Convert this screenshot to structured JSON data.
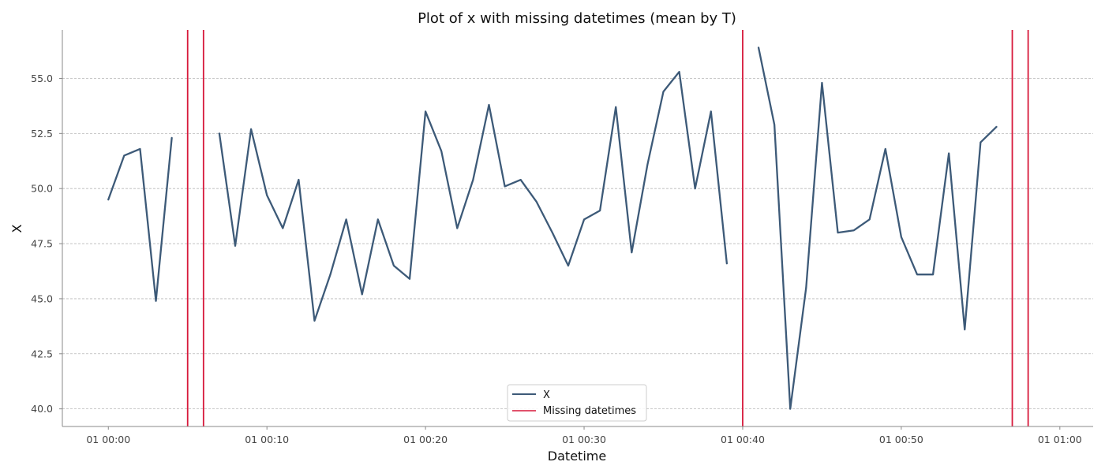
{
  "chart_data": {
    "type": "line",
    "title": "Plot of x with missing datetimes (mean by T)",
    "xlabel": "Datetime",
    "ylabel": "X",
    "x_unit": "minutes",
    "xlim": [
      -2.9,
      62.1
    ],
    "ylim": [
      39.2,
      57.2
    ],
    "x_ticks": [
      0,
      10,
      20,
      30,
      40,
      50,
      60
    ],
    "x_tick_labels": [
      "01 00:00",
      "01 00:10",
      "01 00:20",
      "01 00:30",
      "01 00:40",
      "01 00:50",
      "01 01:00"
    ],
    "y_ticks": [
      40.0,
      42.5,
      45.0,
      47.5,
      50.0,
      52.5,
      55.0
    ],
    "y_tick_labels": [
      "40.0",
      "42.5",
      "45.0",
      "47.5",
      "50.0",
      "52.5",
      "55.0"
    ],
    "grid": "horizontal",
    "legend_position": "bottom-center",
    "series": [
      {
        "name": "X",
        "color": "#3d5a78",
        "x": [
          0,
          1,
          2,
          3,
          4,
          5,
          6,
          7,
          8,
          9,
          10,
          11,
          12,
          13,
          14,
          15,
          16,
          17,
          18,
          19,
          20,
          21,
          22,
          23,
          24,
          25,
          26,
          27,
          28,
          29,
          30,
          31,
          32,
          33,
          34,
          35,
          36,
          37,
          38,
          39,
          40,
          41,
          42,
          43,
          44,
          45,
          46,
          47,
          48,
          49,
          50,
          51,
          52,
          53,
          54,
          55,
          56
        ],
        "values": [
          49.5,
          51.5,
          51.8,
          44.9,
          52.3,
          null,
          null,
          52.5,
          47.4,
          52.7,
          49.7,
          48.2,
          50.4,
          44.0,
          46.1,
          48.6,
          45.2,
          48.6,
          46.5,
          45.9,
          53.5,
          51.7,
          48.2,
          50.4,
          53.8,
          50.1,
          50.4,
          49.4,
          48.0,
          46.5,
          48.6,
          49.0,
          53.7,
          47.1,
          51.1,
          54.4,
          55.3,
          50.0,
          53.5,
          46.6,
          null,
          56.4,
          52.9,
          40.0,
          45.5,
          54.8,
          48.0,
          48.1,
          48.6,
          51.8,
          47.8,
          46.1,
          46.1,
          51.6,
          43.6,
          52.1,
          52.8
        ]
      },
      {
        "name": "Missing datetimes",
        "color": "#d7193b",
        "x": [
          5,
          6,
          40,
          57,
          58
        ]
      }
    ],
    "legend": [
      {
        "label": "X",
        "color": "#3d5a78"
      },
      {
        "label": "Missing datetimes",
        "color": "#d7193b"
      }
    ]
  }
}
